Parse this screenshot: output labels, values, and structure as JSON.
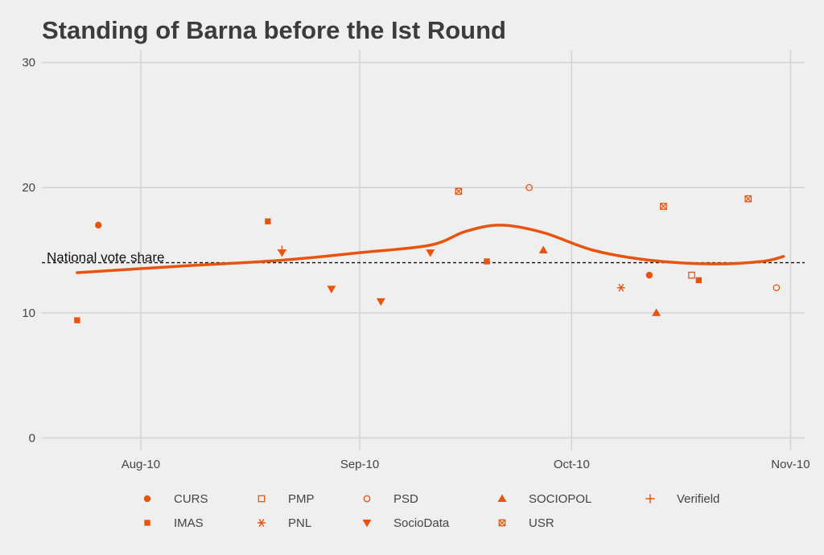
{
  "chart_data": {
    "type": "scatter",
    "title": "Standing of Barna before the Ist Round",
    "xlabel": "",
    "ylabel": "",
    "color": "#e8530e",
    "x_ticks": [
      {
        "date": "2019-08-10",
        "label": "Aug-10"
      },
      {
        "date": "2019-09-10",
        "label": "Sep-10"
      },
      {
        "date": "2019-10-10",
        "label": "Oct-10"
      },
      {
        "date": "2019-11-10",
        "label": "Nov-10"
      }
    ],
    "xlim": [
      "2019-07-27",
      "2019-11-12"
    ],
    "y_ticks": [
      0,
      10,
      20,
      30
    ],
    "ylim": [
      -1,
      31
    ],
    "grid": true,
    "reference_line": {
      "value": 14,
      "label": "National vote share"
    },
    "smooth_trend": [
      {
        "x": "2019-08-01",
        "y": 13.2
      },
      {
        "x": "2019-08-15",
        "y": 13.7
      },
      {
        "x": "2019-08-30",
        "y": 14.2
      },
      {
        "x": "2019-09-10",
        "y": 14.8
      },
      {
        "x": "2019-09-20",
        "y": 15.4
      },
      {
        "x": "2019-09-25",
        "y": 16.5
      },
      {
        "x": "2019-09-30",
        "y": 17.0
      },
      {
        "x": "2019-10-06",
        "y": 16.4
      },
      {
        "x": "2019-10-13",
        "y": 15.0
      },
      {
        "x": "2019-10-21",
        "y": 14.2
      },
      {
        "x": "2019-10-30",
        "y": 13.9
      },
      {
        "x": "2019-11-06",
        "y": 14.1
      },
      {
        "x": "2019-11-09",
        "y": 14.5
      }
    ],
    "points": [
      {
        "pollster": "CURS",
        "x": "2019-08-04",
        "y": 17
      },
      {
        "pollster": "IMAS",
        "x": "2019-08-01",
        "y": 9.4
      },
      {
        "pollster": "IMAS",
        "x": "2019-08-28",
        "y": 17.3
      },
      {
        "pollster": "Verifield",
        "x": "2019-08-30",
        "y": 15
      },
      {
        "pollster": "SocioData",
        "x": "2019-08-30",
        "y": 14.8
      },
      {
        "pollster": "SocioData",
        "x": "2019-09-06",
        "y": 11.9
      },
      {
        "pollster": "SocioData",
        "x": "2019-09-13",
        "y": 10.9
      },
      {
        "pollster": "SocioData",
        "x": "2019-09-20",
        "y": 14.8
      },
      {
        "pollster": "USR",
        "x": "2019-09-24",
        "y": 19.7
      },
      {
        "pollster": "IMAS",
        "x": "2019-09-28",
        "y": 14.1
      },
      {
        "pollster": "PSD",
        "x": "2019-10-04",
        "y": 20
      },
      {
        "pollster": "SOCIOPOL",
        "x": "2019-10-06",
        "y": 15
      },
      {
        "pollster": "PNL",
        "x": "2019-10-17",
        "y": 12
      },
      {
        "pollster": "CURS",
        "x": "2019-10-21",
        "y": 13
      },
      {
        "pollster": "SOCIOPOL",
        "x": "2019-10-22",
        "y": 10
      },
      {
        "pollster": "USR",
        "x": "2019-10-23",
        "y": 18.5
      },
      {
        "pollster": "PMP",
        "x": "2019-10-27",
        "y": 13
      },
      {
        "pollster": "IMAS",
        "x": "2019-10-28",
        "y": 12.6
      },
      {
        "pollster": "USR",
        "x": "2019-11-04",
        "y": 19.1
      },
      {
        "pollster": "PSD",
        "x": "2019-11-08",
        "y": 12
      }
    ],
    "legend": {
      "placement": "bottom",
      "entries": [
        {
          "name": "CURS",
          "shape": "circle-filled"
        },
        {
          "name": "PMP",
          "shape": "square-open"
        },
        {
          "name": "PSD",
          "shape": "circle-open"
        },
        {
          "name": "SOCIOPOL",
          "shape": "triangle-up-filled"
        },
        {
          "name": "Verifield",
          "shape": "plus"
        },
        {
          "name": "IMAS",
          "shape": "square-filled"
        },
        {
          "name": "PNL",
          "shape": "asterisk"
        },
        {
          "name": "SocioData",
          "shape": "triangle-down-filled"
        },
        {
          "name": "USR",
          "shape": "square-cross"
        }
      ]
    }
  }
}
